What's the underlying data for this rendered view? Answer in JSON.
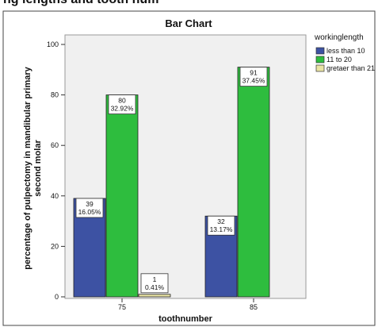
{
  "page": {
    "top_heading_fragment": "ng lengths and tooth num"
  },
  "chart_data": {
    "type": "bar",
    "title": "Bar Chart",
    "xlabel": "toothnumber",
    "ylabel_lines": [
      "percentage of pulpectomy in mandibular primary",
      "second molar"
    ],
    "categories": [
      "75",
      "85"
    ],
    "ylim": [
      0,
      100
    ],
    "yticks": [
      0,
      20,
      40,
      60,
      80,
      100
    ],
    "grid": false,
    "legend_position": "right",
    "legend_title": "workinglength",
    "series": [
      {
        "name": "less than 10",
        "color": "#3d52a3",
        "values": [
          39,
          32
        ],
        "labels": [
          [
            "39",
            "16.05%"
          ],
          [
            "32",
            "13.17%"
          ]
        ]
      },
      {
        "name": "11 to 20",
        "color": "#2ebd3e",
        "values": [
          80,
          91
        ],
        "labels": [
          [
            "80",
            "32.92%"
          ],
          [
            "91",
            "37.45%"
          ]
        ]
      },
      {
        "name": "gretaer than 21",
        "color": "#e9e4a4",
        "values": [
          1,
          0
        ],
        "labels": [
          [
            "1",
            "0.41%"
          ],
          null
        ]
      }
    ]
  }
}
